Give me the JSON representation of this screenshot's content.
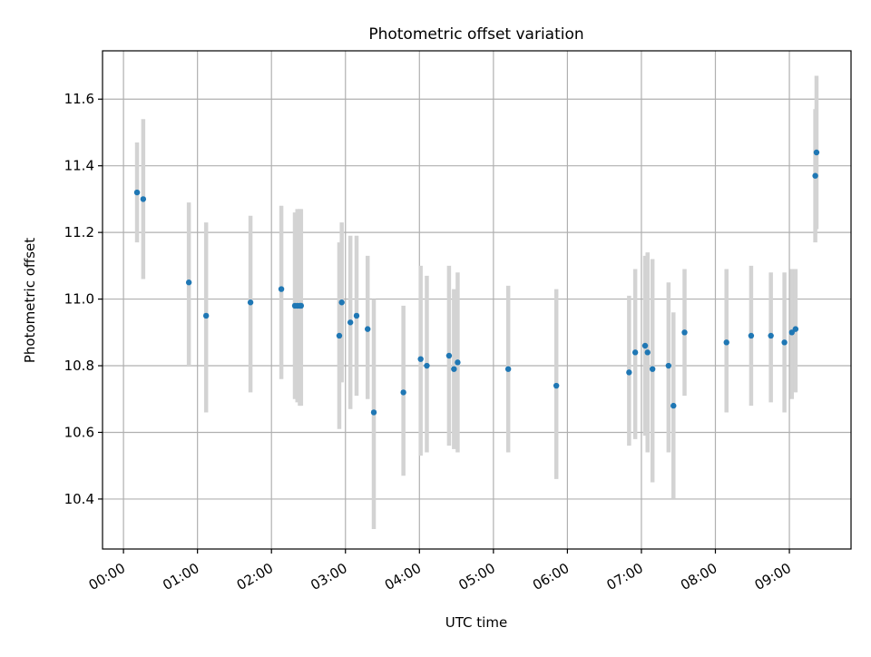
{
  "chart_data": {
    "type": "scatter",
    "title": "Photometric offset variation",
    "xlabel": "UTC time",
    "ylabel": "Photometric offset",
    "xlim": [
      "-00:17",
      "09:50"
    ],
    "ylim": [
      10.25,
      11.745
    ],
    "x_ticks": [
      "00:00",
      "01:00",
      "02:00",
      "03:00",
      "04:00",
      "05:00",
      "06:00",
      "07:00",
      "08:00",
      "09:00"
    ],
    "y_ticks": [
      "10.4",
      "10.6",
      "10.8",
      "11.0",
      "11.2",
      "11.4",
      "11.6"
    ],
    "grid": true,
    "marker_color": "#1f77b4",
    "errorbar_color": "#d3d3d3",
    "series": [
      {
        "points": [
          {
            "x": "00:11",
            "y": 11.32,
            "ylo": 11.17,
            "yhi": 11.47
          },
          {
            "x": "00:16",
            "y": 11.3,
            "ylo": 11.06,
            "yhi": 11.54
          },
          {
            "x": "00:53",
            "y": 11.05,
            "ylo": 10.8,
            "yhi": 11.29
          },
          {
            "x": "01:07",
            "y": 10.95,
            "ylo": 10.66,
            "yhi": 11.23
          },
          {
            "x": "01:43",
            "y": 10.99,
            "ylo": 10.72,
            "yhi": 11.25
          },
          {
            "x": "02:08",
            "y": 11.03,
            "ylo": 10.76,
            "yhi": 11.28
          },
          {
            "x": "02:19",
            "y": 10.98,
            "ylo": 10.7,
            "yhi": 11.26
          },
          {
            "x": "02:21",
            "y": 10.98,
            "ylo": 10.69,
            "yhi": 11.27
          },
          {
            "x": "02:23",
            "y": 10.98,
            "ylo": 10.68,
            "yhi": 11.27
          },
          {
            "x": "02:24",
            "y": 10.98,
            "ylo": 10.68,
            "yhi": 11.27
          },
          {
            "x": "02:55",
            "y": 10.89,
            "ylo": 10.61,
            "yhi": 11.17
          },
          {
            "x": "02:57",
            "y": 10.99,
            "ylo": 10.75,
            "yhi": 11.23
          },
          {
            "x": "03:04",
            "y": 10.93,
            "ylo": 10.67,
            "yhi": 11.19
          },
          {
            "x": "03:09",
            "y": 10.95,
            "ylo": 10.71,
            "yhi": 11.19
          },
          {
            "x": "03:18",
            "y": 10.91,
            "ylo": 10.7,
            "yhi": 11.13
          },
          {
            "x": "03:23",
            "y": 10.66,
            "ylo": 10.31,
            "yhi": 11.0
          },
          {
            "x": "03:47",
            "y": 10.72,
            "ylo": 10.47,
            "yhi": 10.98
          },
          {
            "x": "04:01",
            "y": 10.82,
            "ylo": 10.53,
            "yhi": 11.1
          },
          {
            "x": "04:06",
            "y": 10.8,
            "ylo": 10.54,
            "yhi": 11.07
          },
          {
            "x": "04:24",
            "y": 10.83,
            "ylo": 10.56,
            "yhi": 11.1
          },
          {
            "x": "04:28",
            "y": 10.79,
            "ylo": 10.55,
            "yhi": 11.03
          },
          {
            "x": "04:31",
            "y": 10.81,
            "ylo": 10.54,
            "yhi": 11.08
          },
          {
            "x": "05:12",
            "y": 10.79,
            "ylo": 10.54,
            "yhi": 11.04
          },
          {
            "x": "05:51",
            "y": 10.74,
            "ylo": 10.46,
            "yhi": 11.03
          },
          {
            "x": "06:50",
            "y": 10.78,
            "ylo": 10.56,
            "yhi": 11.01
          },
          {
            "x": "06:55",
            "y": 10.84,
            "ylo": 10.58,
            "yhi": 11.09
          },
          {
            "x": "07:03",
            "y": 10.86,
            "ylo": 10.59,
            "yhi": 11.13
          },
          {
            "x": "07:05",
            "y": 10.84,
            "ylo": 10.54,
            "yhi": 11.14
          },
          {
            "x": "07:09",
            "y": 10.79,
            "ylo": 10.45,
            "yhi": 11.12
          },
          {
            "x": "07:22",
            "y": 10.8,
            "ylo": 10.54,
            "yhi": 11.05
          },
          {
            "x": "07:26",
            "y": 10.68,
            "ylo": 10.4,
            "yhi": 10.96
          },
          {
            "x": "07:35",
            "y": 10.9,
            "ylo": 10.71,
            "yhi": 11.09
          },
          {
            "x": "08:09",
            "y": 10.87,
            "ylo": 10.66,
            "yhi": 11.09
          },
          {
            "x": "08:29",
            "y": 10.89,
            "ylo": 10.68,
            "yhi": 11.1
          },
          {
            "x": "08:45",
            "y": 10.89,
            "ylo": 10.69,
            "yhi": 11.08
          },
          {
            "x": "08:56",
            "y": 10.87,
            "ylo": 10.66,
            "yhi": 11.08
          },
          {
            "x": "09:02",
            "y": 10.9,
            "ylo": 10.7,
            "yhi": 11.09
          },
          {
            "x": "09:05",
            "y": 10.91,
            "ylo": 10.72,
            "yhi": 11.09
          },
          {
            "x": "09:21",
            "y": 11.37,
            "ylo": 11.17,
            "yhi": 11.57
          },
          {
            "x": "09:22",
            "y": 11.44,
            "ylo": 11.21,
            "yhi": 11.67
          }
        ]
      }
    ]
  }
}
